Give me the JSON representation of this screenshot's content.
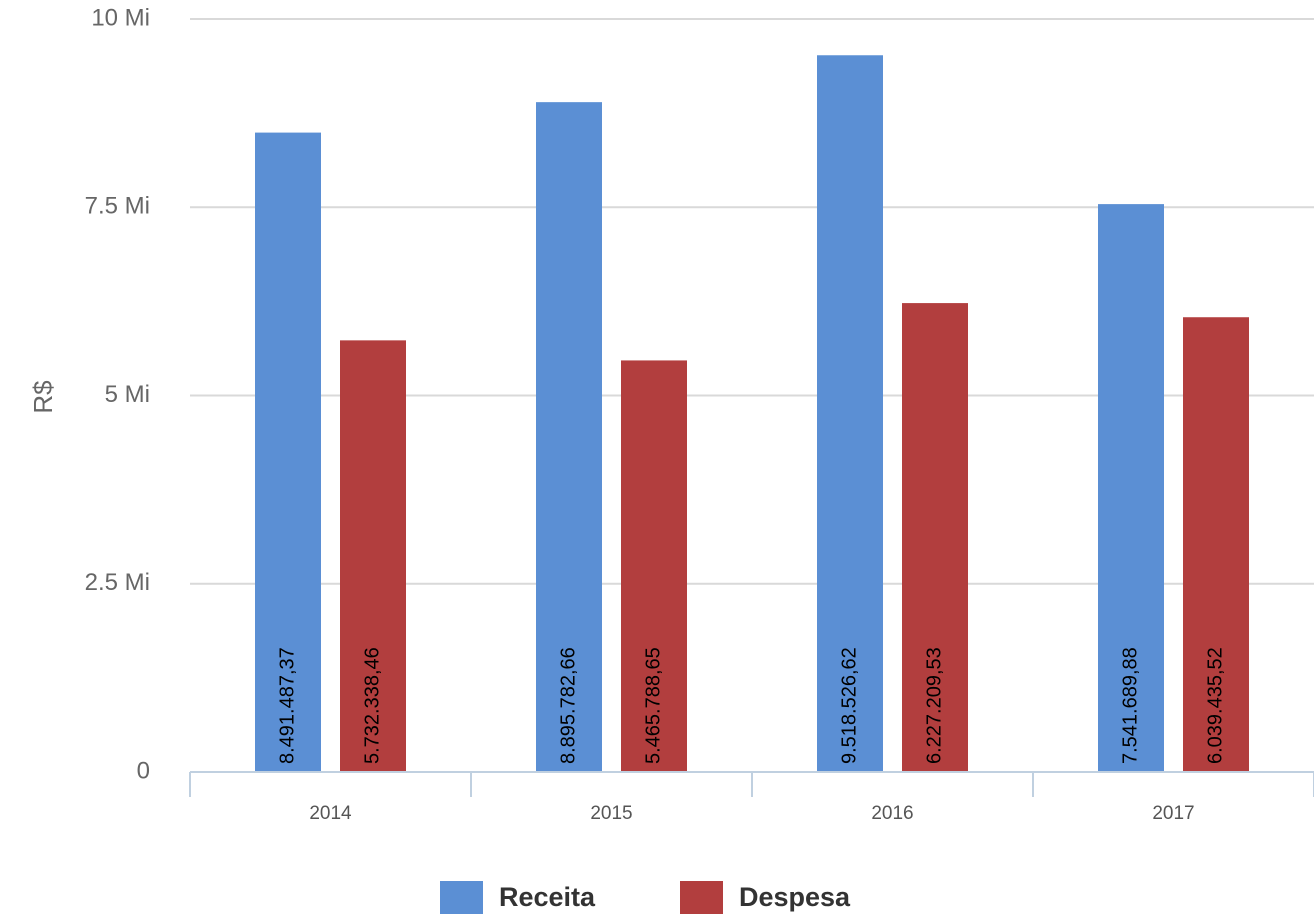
{
  "chart_data": {
    "type": "bar",
    "categories": [
      "2014",
      "2015",
      "2016",
      "2017"
    ],
    "series": [
      {
        "name": "Receita",
        "color": "#5B8FD4",
        "values": [
          8491487.37,
          8895782.66,
          9518526.62,
          7541689.88
        ],
        "labels": [
          "8.491.487,37",
          "8.895.782,66",
          "9.518.526,62",
          "7.541.689,88"
        ]
      },
      {
        "name": "Despesa",
        "color": "#B23E3E",
        "values": [
          5732338.46,
          5465788.65,
          6227209.53,
          6039435.52
        ],
        "labels": [
          "5.732.338,46",
          "5.465.788,65",
          "6.227.209,53",
          "6.039.435,52"
        ]
      }
    ],
    "ylabel": "R$",
    "xlabel": "",
    "title": "",
    "ylim": [
      0,
      10000000
    ],
    "yticks": [
      0,
      2500000,
      5000000,
      7500000,
      10000000
    ],
    "ytick_labels": [
      "0",
      "2.5 Mi",
      "5 Mi",
      "7.5 Mi",
      "10 Mi"
    ],
    "grid": true,
    "legend_position": "bottom-center"
  }
}
